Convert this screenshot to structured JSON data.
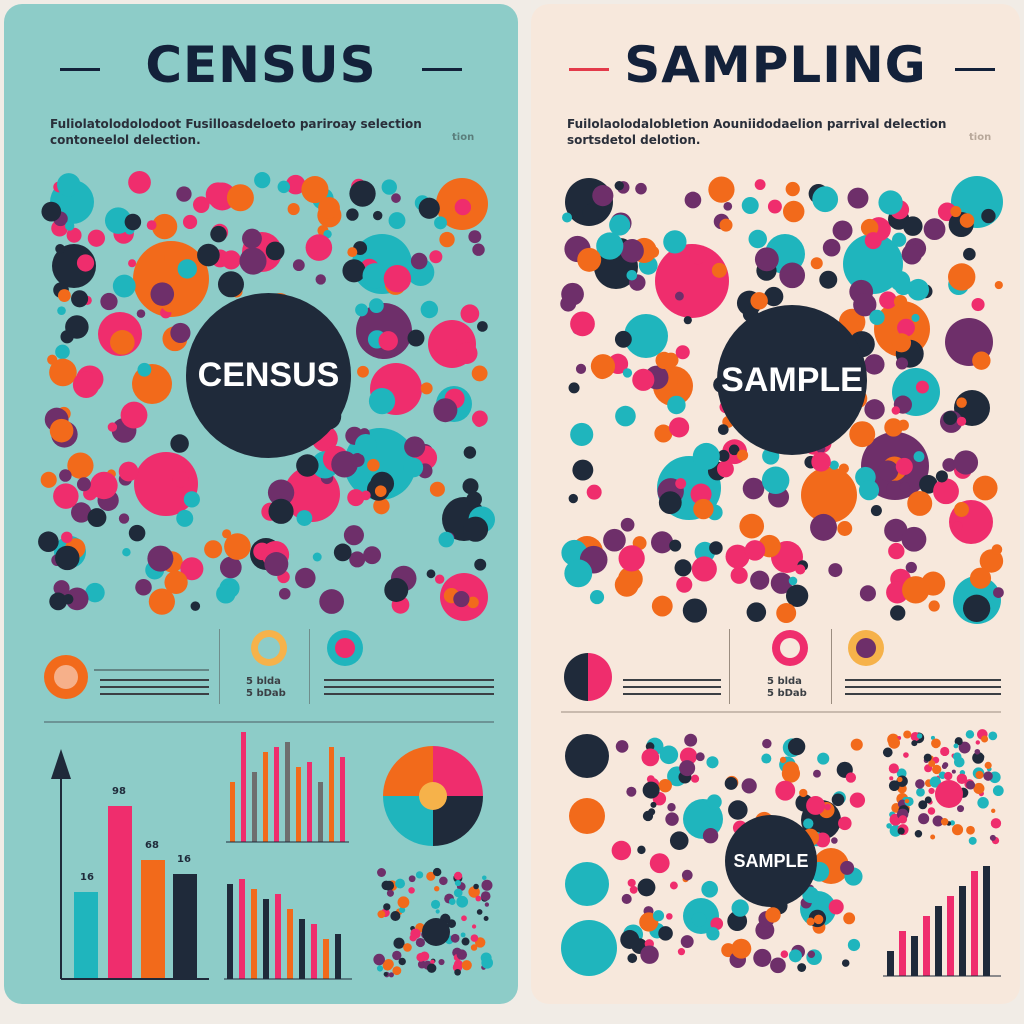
{
  "left": {
    "title": "CENSUS",
    "subtitle": "Fuliolatolodolodoot Fusilloasdeloeto pariroay selection contoneelol delection.",
    "subtitle_tag": "tion",
    "center_label": "CENSUS",
    "bar_value_labels": [
      "16",
      "98",
      "68",
      "16"
    ],
    "stat_labels": [
      "5 blda",
      "5 bDab"
    ]
  },
  "right": {
    "title": "SAMPLING",
    "subtitle": "Fuilolaolodalobletion Aouniidodaelion parrival delection sortsdetol delotion.",
    "subtitle_tag": "tion",
    "center_label": "SAMPLE",
    "small_center_label": "SAMPLE",
    "stat_labels": [
      "5 blda",
      "5 bDab"
    ]
  },
  "colors": {
    "teal": "#1fb5bd",
    "pink": "#ef2d6d",
    "orange": "#f26a1b",
    "navy": "#1f2a3a",
    "purple": "#6e2f6a",
    "left_bg": "#8dccc8",
    "right_bg": "#f7e8dc"
  }
}
